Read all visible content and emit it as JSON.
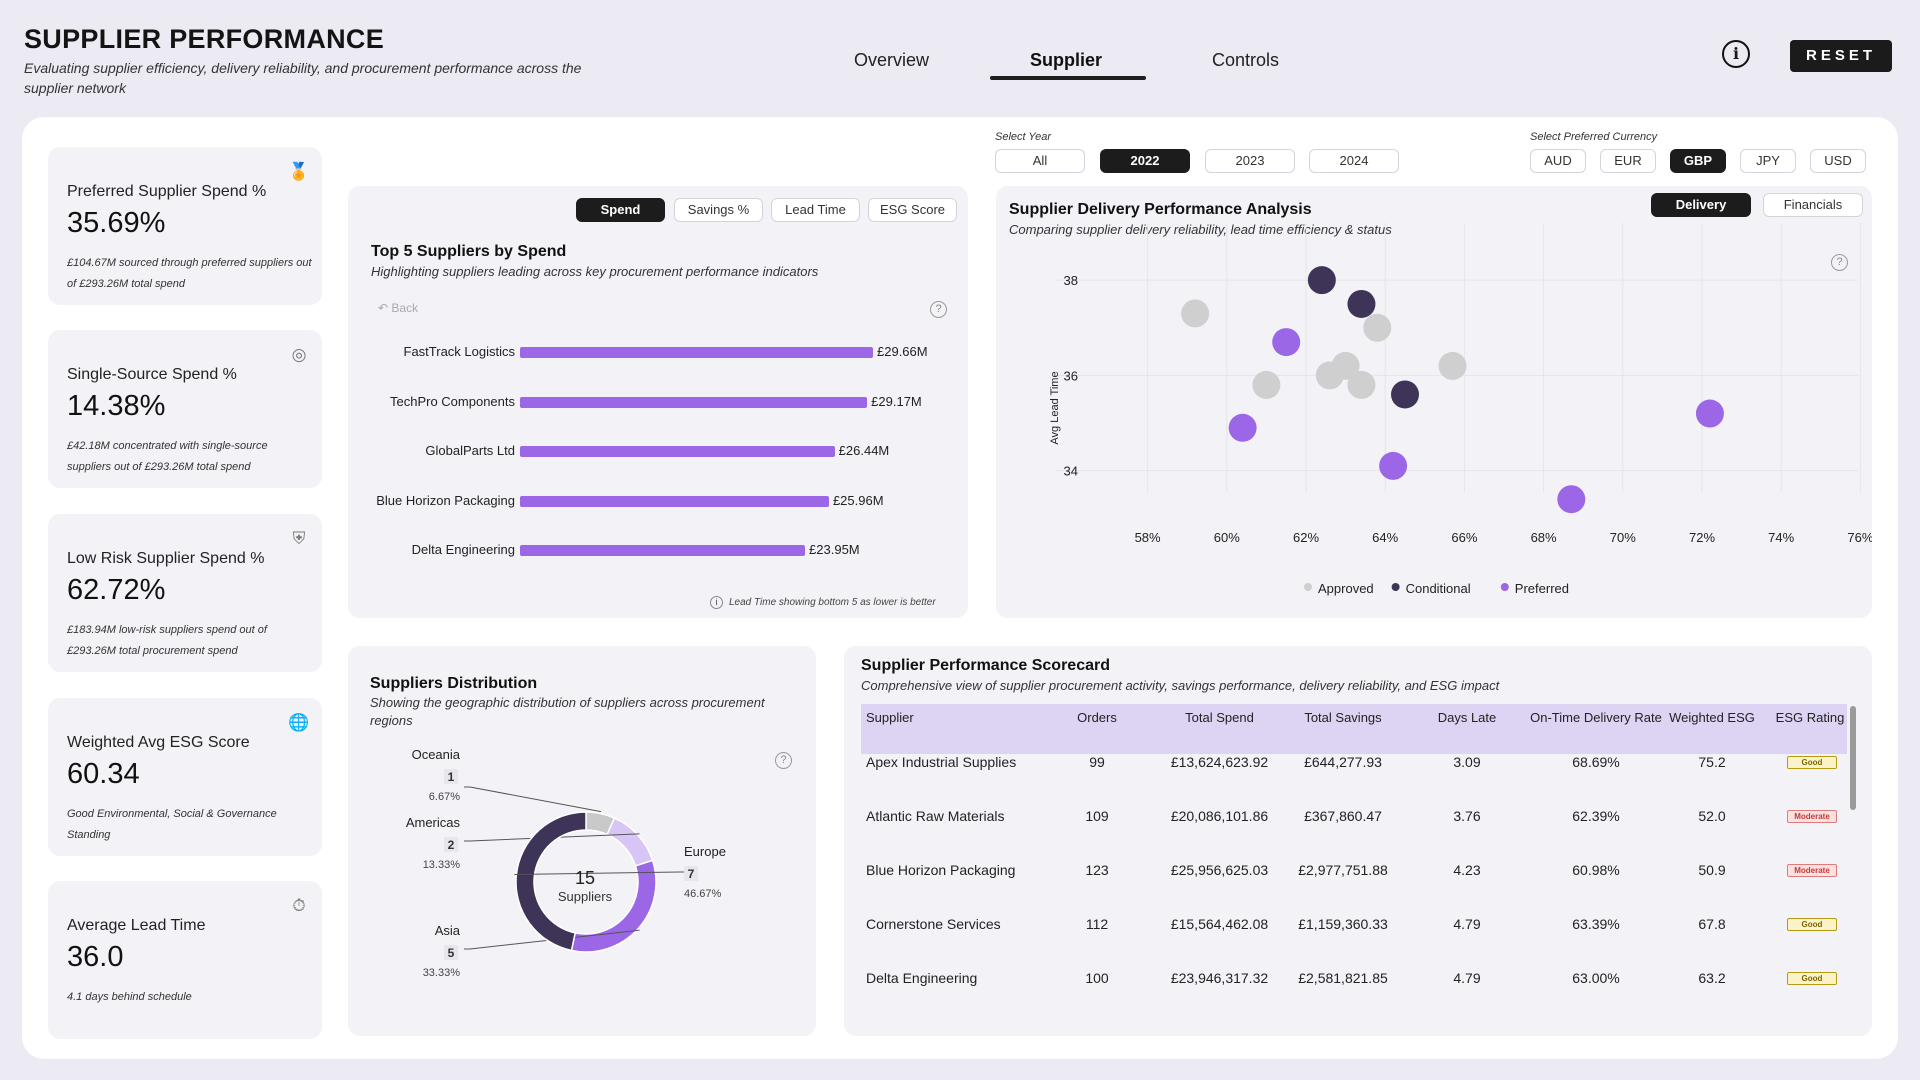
{
  "header": {
    "title": "SUPPLIER PERFORMANCE",
    "subtitle": "Evaluating supplier efficiency, delivery reliability, and procurement performance across the supplier network",
    "tabs": [
      "Overview",
      "Supplier",
      "Controls"
    ],
    "active_tab": "Supplier",
    "info_label": "i",
    "reset_label": "RESET"
  },
  "kpis": [
    {
      "label": "Preferred Supplier Spend %",
      "value": "35.69%",
      "note": "£104.67M sourced through preferred suppliers out of £293.26M total spend",
      "icon": "award-icon"
    },
    {
      "label": "Single-Source Spend %",
      "value": "14.38%",
      "note": "£42.18M concentrated with single-source suppliers out of £293.26M total spend",
      "icon": "target-icon"
    },
    {
      "label": "Low Risk Supplier Spend %",
      "value": "62.72%",
      "note": "£183.94M low-risk suppliers spend out of £293.26M total procurement spend",
      "icon": "shield-icon"
    },
    {
      "label": "Weighted Avg ESG Score",
      "value": "60.34",
      "note": "Good Environmental, Social & Governance Standing",
      "icon": "globe-icon"
    },
    {
      "label": "Average Lead Time",
      "value": "36.0",
      "note": "4.1 days behind schedule",
      "icon": "clock-icon"
    }
  ],
  "filters": {
    "year_label": "Select Year",
    "years": [
      "All",
      "2022",
      "2023",
      "2024"
    ],
    "selected_year": "2022",
    "currency_label": "Select Preferred Currency",
    "currencies": [
      "AUD",
      "EUR",
      "GBP",
      "JPY",
      "USD"
    ],
    "selected_currency": "GBP"
  },
  "top5": {
    "tabs": [
      "Spend",
      "Savings %",
      "Lead Time",
      "ESG Score"
    ],
    "active": "Spend",
    "title": "Top 5 Suppliers by Spend",
    "subtitle": "Highlighting suppliers leading across key procurement performance indicators",
    "back_label": "Back",
    "footnote": "Lead Time showing bottom 5 as lower is better",
    "help": "?"
  },
  "scatter": {
    "title": "Supplier Delivery Performance Analysis",
    "subtitle": "Comparing supplier delivery reliability, lead time efficiency & status",
    "toggle": [
      "Delivery",
      "Financials"
    ],
    "active_toggle": "Delivery",
    "help": "?"
  },
  "distribution": {
    "title": "Suppliers Distribution",
    "subtitle": "Showing the geographic distribution of suppliers across procurement regions",
    "center_value": "15",
    "center_label": "Suppliers",
    "help": "?"
  },
  "scorecard": {
    "title": "Supplier Performance Scorecard",
    "subtitle": "Comprehensive view of supplier procurement activity, savings performance, delivery reliability, and ESG impact",
    "columns": [
      "Supplier",
      "Orders",
      "Total Spend",
      "Total Savings",
      "Days Late",
      "On-Time Delivery Rate",
      "Weighted ESG",
      "ESG Rating"
    ],
    "rows": [
      [
        "Apex Industrial Supplies",
        "99",
        "£13,624,623.92",
        "£644,277.93",
        "3.09",
        "68.69%",
        "75.2",
        "Good"
      ],
      [
        "Atlantic Raw Materials",
        "109",
        "£20,086,101.86",
        "£367,860.47",
        "3.76",
        "62.39%",
        "52.0",
        "Moderate"
      ],
      [
        "Blue Horizon Packaging",
        "123",
        "£25,956,625.03",
        "£2,977,751.88",
        "4.23",
        "60.98%",
        "50.9",
        "Moderate"
      ],
      [
        "Cornerstone Services",
        "112",
        "£15,564,462.08",
        "£1,159,360.33",
        "4.79",
        "63.39%",
        "67.8",
        "Good"
      ],
      [
        "Delta Engineering",
        "100",
        "£23,946,317.32",
        "£2,581,821.85",
        "4.79",
        "63.00%",
        "63.2",
        "Good"
      ]
    ]
  },
  "colors": {
    "accent": "#9c67e6",
    "conditional": "#3d3458",
    "approved": "#cfcfcf",
    "dark": "#1c1c1c"
  },
  "chart_data": [
    {
      "type": "bar",
      "orientation": "horizontal",
      "categories": [
        "FastTrack Logistics",
        "TechPro Components",
        "GlobalParts Ltd",
        "Blue Horizon Packaging",
        "Delta Engineering"
      ],
      "values": [
        29.66,
        29.17,
        26.44,
        25.96,
        23.95
      ],
      "labels": [
        "£29.66M",
        "£29.17M",
        "£26.44M",
        "£25.96M",
        "£23.95M"
      ]
    },
    {
      "type": "scatter",
      "ylabel": "Avg Lead Time",
      "xticks": [
        "58%",
        "60%",
        "62%",
        "64%",
        "66%",
        "68%",
        "70%",
        "72%",
        "74%",
        "76%"
      ],
      "yticks": [
        "34",
        "36",
        "38"
      ],
      "xlim": [
        57,
        77
      ],
      "ylim": [
        33.3,
        39.2
      ],
      "grid": true,
      "legend_position": "bottom",
      "series": [
        {
          "name": "Approved",
          "color": "#cfcfcf",
          "points": [
            [
              59.2,
              37.3
            ],
            [
              61.0,
              35.8
            ],
            [
              62.6,
              36.0
            ],
            [
              63.0,
              36.2
            ],
            [
              63.4,
              35.8
            ],
            [
              63.8,
              37.0
            ],
            [
              65.7,
              36.2
            ]
          ]
        },
        {
          "name": "Conditional",
          "color": "#3d3458",
          "points": [
            [
              62.4,
              38.0
            ],
            [
              63.4,
              37.5
            ],
            [
              64.5,
              35.6
            ]
          ]
        },
        {
          "name": "Preferred",
          "color": "#9c67e6",
          "points": [
            [
              61.5,
              36.7
            ],
            [
              60.4,
              34.9
            ],
            [
              64.2,
              34.1
            ],
            [
              68.7,
              33.4
            ],
            [
              72.2,
              35.2
            ]
          ]
        }
      ]
    },
    {
      "type": "pie",
      "style": "donut",
      "categories": [
        "Oceania",
        "Americas",
        "Asia",
        "Europe"
      ],
      "values": [
        1,
        2,
        5,
        7
      ],
      "percent_labels": [
        "6.67%",
        "13.33%",
        "33.33%",
        "46.67%"
      ],
      "count_labels": [
        "1",
        "2",
        "5",
        "7"
      ]
    }
  ]
}
